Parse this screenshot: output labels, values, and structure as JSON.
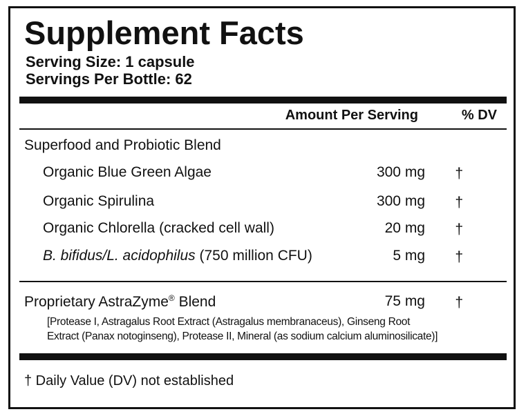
{
  "title": "Supplement Facts",
  "serving_size": "Serving Size: 1 capsule",
  "servings_per": "Servings Per Bottle: 62",
  "header": {
    "amount": "Amount Per Serving",
    "dv": "% DV"
  },
  "blend": {
    "name": "Superfood and Probiotic Blend",
    "rows": [
      {
        "name": [
          {
            "text": "Organic Blue Green Algae"
          }
        ],
        "amount": "300 mg",
        "dv": "†"
      },
      {
        "name": [
          {
            "text": "Organic Spirulina"
          }
        ],
        "amount": "300 mg",
        "dv": "†"
      },
      {
        "name": [
          {
            "text": "Organic Chlorella (cracked cell wall)"
          }
        ],
        "amount": "20 mg",
        "dv": "†"
      },
      {
        "name": [
          {
            "text": "B. bifidus/L. acidophilus",
            "italic": true
          },
          {
            "text": " (750 million CFU)"
          }
        ],
        "amount": "5 mg",
        "dv": "†"
      }
    ]
  },
  "proprietary": {
    "name": [
      {
        "text": "Proprietary AstraZyme"
      },
      {
        "text": "®",
        "sup": true
      },
      {
        "text": " Blend"
      }
    ],
    "amount": "75 mg",
    "dv": "†",
    "ingredients": [
      "[Protease I, Astragalus Root Extract (Astragalus membranaceus), Ginseng Root",
      "Extract (Panax notoginseng), Protease II, Mineral (as sodium calcium aluminosilicate)]"
    ]
  },
  "footnote": "† Daily Value (DV) not established"
}
